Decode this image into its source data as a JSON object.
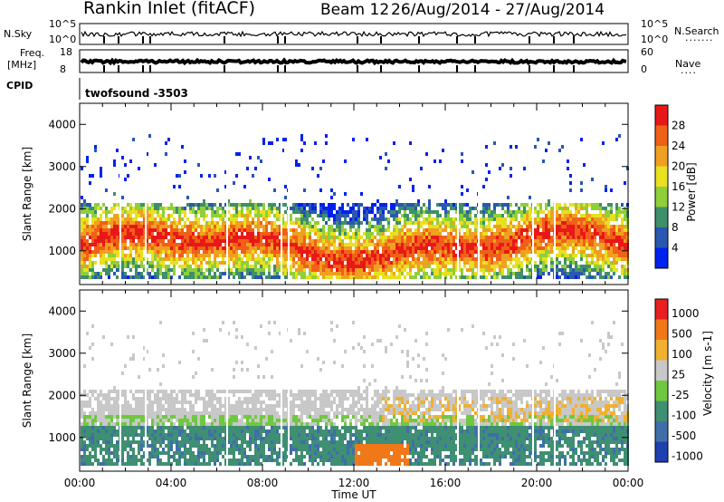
{
  "header": {
    "station": "Rankin Inlet (fitACF)",
    "beam": "Beam 12",
    "date_range": "26/Aug/2014 - 27/Aug/2014"
  },
  "summary_panels": {
    "nsky_label": "N.Sky",
    "nsky_ticks": [
      "10^5",
      "10^0"
    ],
    "nsearch_label": "N.Search",
    "nsearch_ticks": [
      "10^5",
      "10^0"
    ],
    "freq_label": "Freq.",
    "freq_unit": "[MHz]",
    "freq_ticks": [
      "18",
      "8"
    ],
    "nave_label": "Nave",
    "nave_ticks": [
      "60",
      "0"
    ],
    "cpid_label": "CPID",
    "cpid_value": "twofsound -3503"
  },
  "chart_data": [
    {
      "type": "heatmap",
      "name": "power",
      "ylabel": "Slant Range [km]",
      "y_ticks": [
        1000,
        2000,
        3000,
        4000
      ],
      "ylim": [
        200,
        4500
      ],
      "xlabel": "Time UT",
      "x_ticks": [
        "00:00",
        "04:00",
        "08:00",
        "12:00",
        "16:00",
        "20:00",
        "00:00"
      ],
      "colorbar_label": "Power [dB]",
      "colorbar_ticks": [
        4,
        8,
        12,
        16,
        20,
        24,
        28
      ],
      "colorscale": [
        "#0022ee",
        "#2a57b0",
        "#3e8f6a",
        "#8fcf3a",
        "#e8e020",
        "#f0a020",
        "#f06018",
        "#e81818"
      ]
    },
    {
      "type": "heatmap",
      "name": "velocity",
      "ylabel": "Slant Range [km]",
      "y_ticks": [
        1000,
        2000,
        3000,
        4000
      ],
      "ylim": [
        200,
        4500
      ],
      "xlabel": "Time UT",
      "x_ticks": [
        "00:00",
        "04:00",
        "08:00",
        "12:00",
        "16:00",
        "20:00",
        "00:00"
      ],
      "colorbar_label": "Velocity [m s-1]",
      "colorbar_ticks": [
        1000,
        500,
        100,
        25,
        -25,
        -100,
        -500,
        -1000
      ],
      "colorscale": [
        "#2040b0",
        "#3f6fa8",
        "#3f8f72",
        "#70c840",
        "#c8c8c8",
        "#f0b030",
        "#f07818",
        "#e82020"
      ]
    }
  ]
}
